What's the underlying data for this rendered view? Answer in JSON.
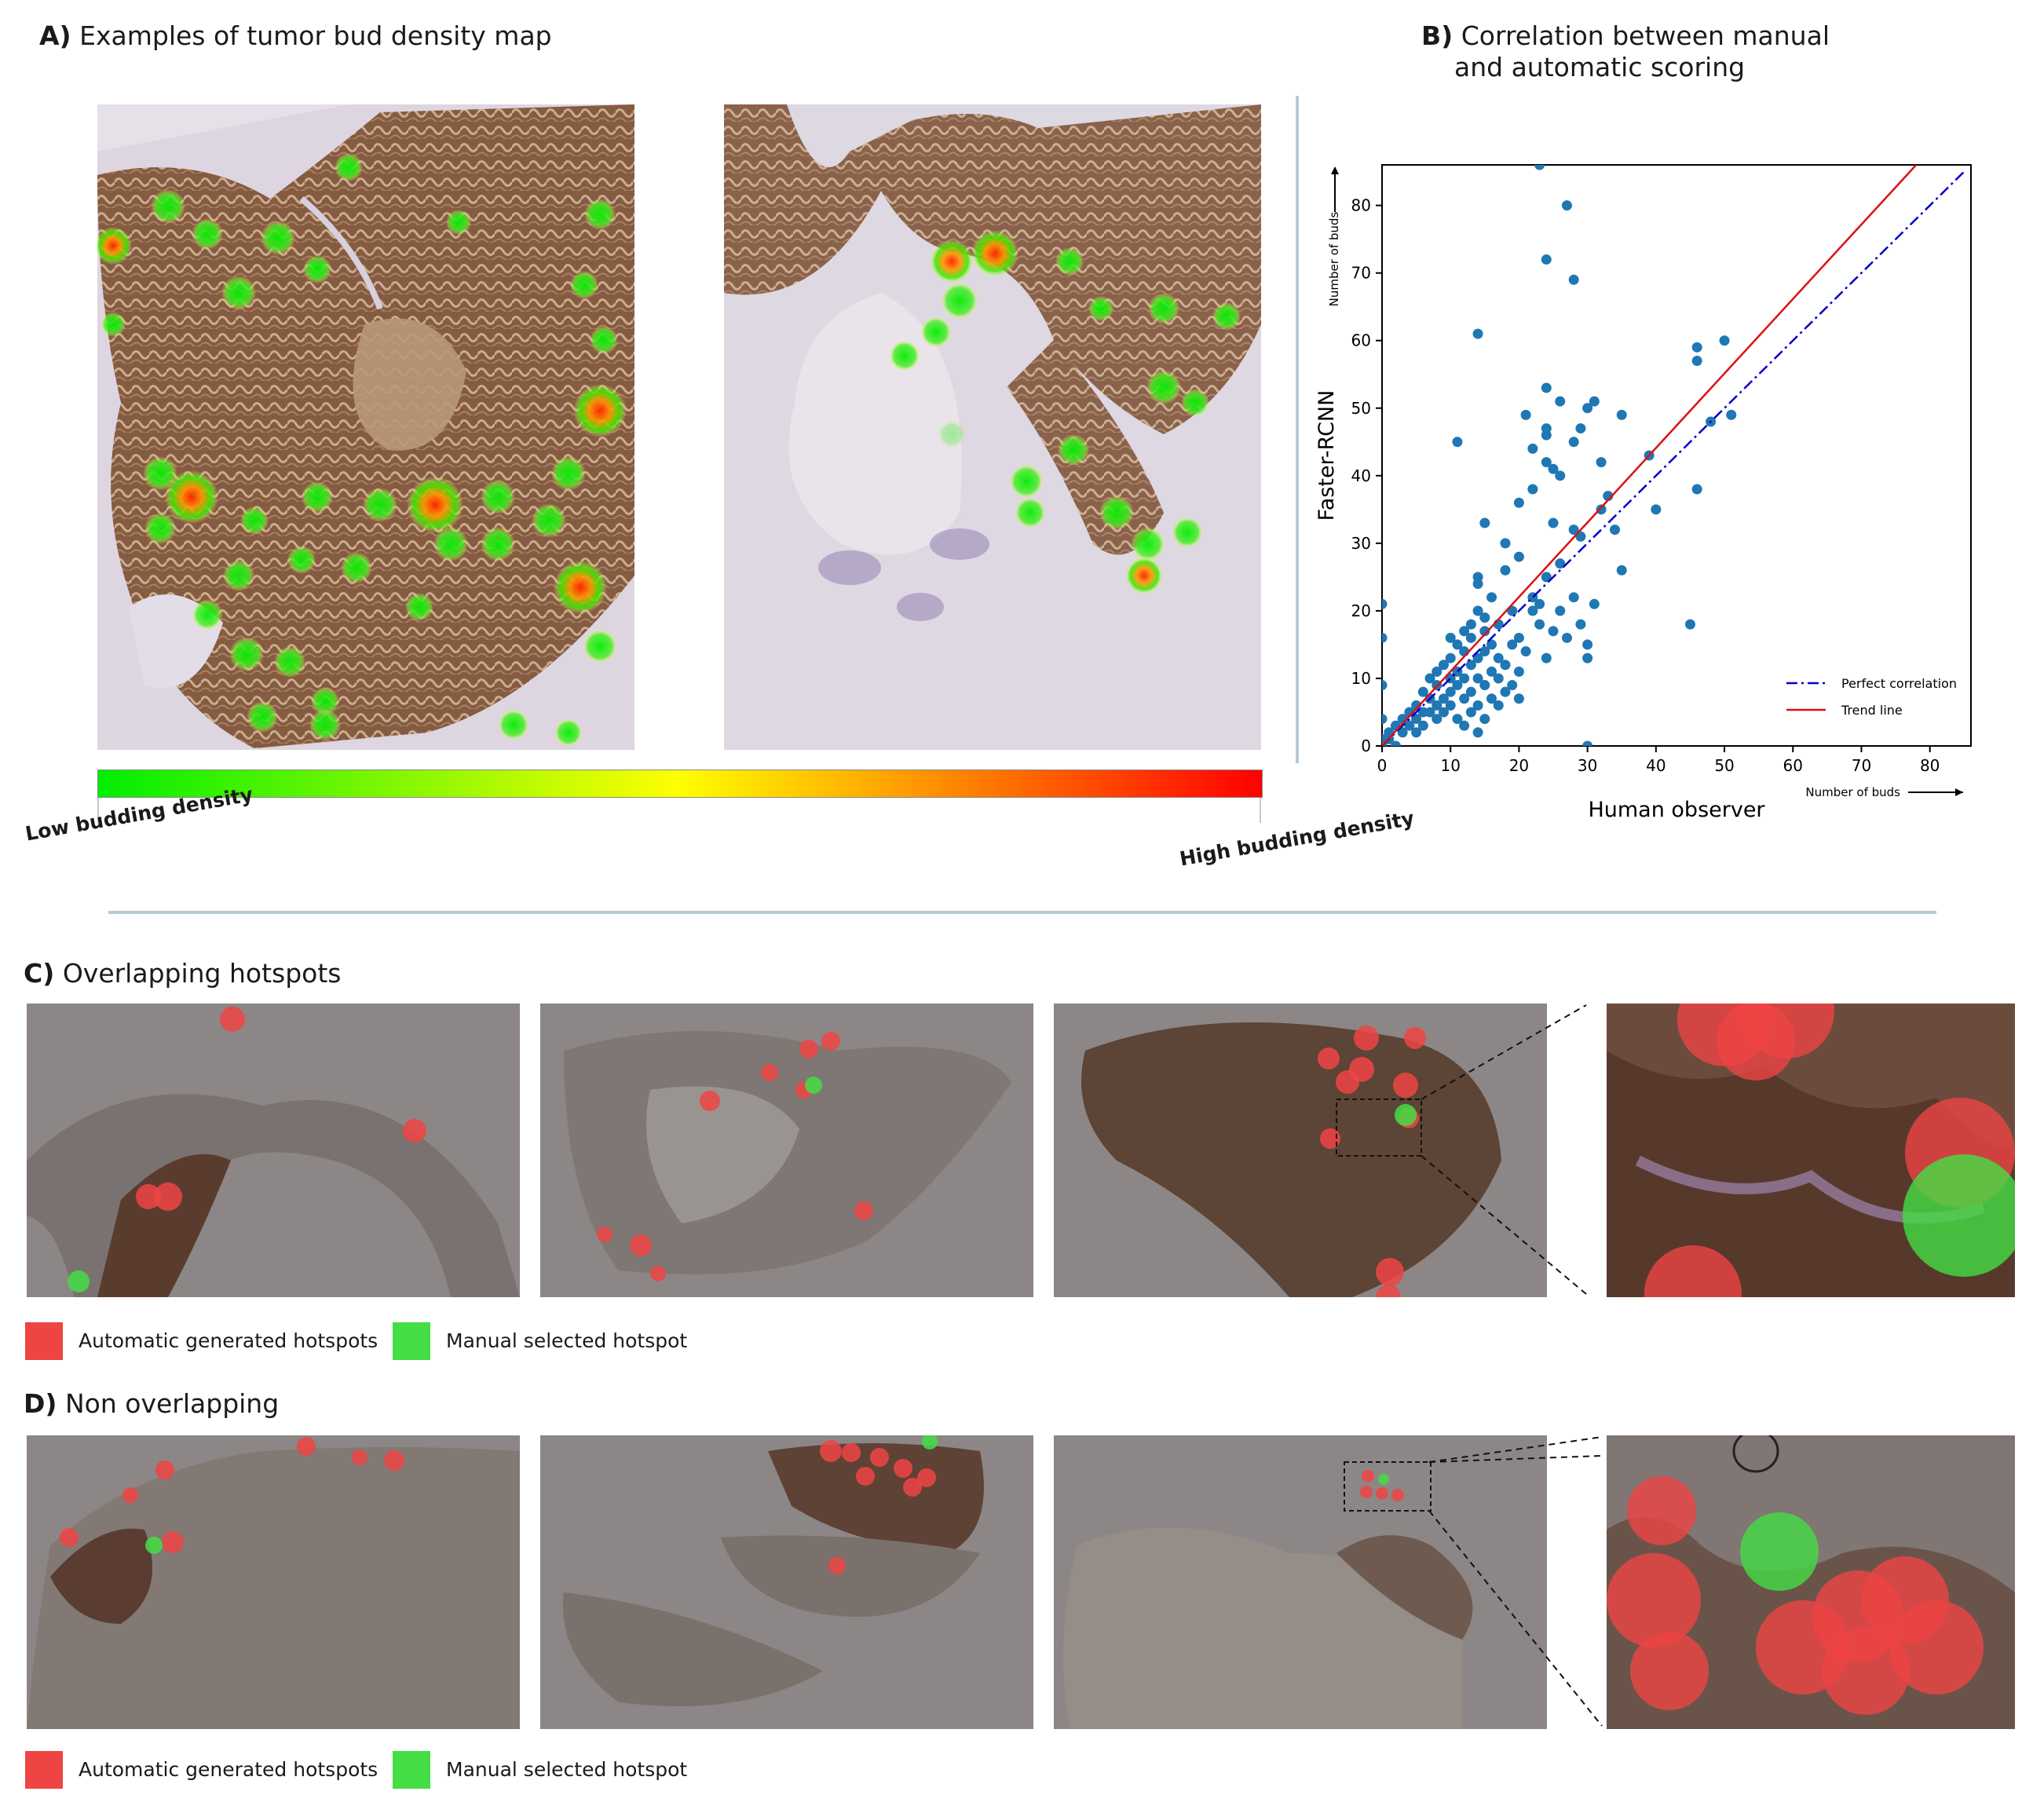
{
  "panel_a": {
    "letter": "A)",
    "title": "Examples of tumor bud density map",
    "colorbar_low_label": "Low budding density",
    "colorbar_high_label": "High budding density",
    "colorbar_colors": [
      "#00ee00",
      "#ffff00",
      "#ff0000"
    ]
  },
  "panel_b": {
    "letter": "B)",
    "title_line1": "Correlation between manual",
    "title_line2": "and automatic scoring"
  },
  "panel_c": {
    "letter": "C)",
    "title": "Overlapping hotspots",
    "legend_auto": "Automatic generated hotspots",
    "legend_manual": "Manual selected hotspot"
  },
  "panel_d": {
    "letter": "D)",
    "title": "Non overlapping",
    "legend_auto": "Automatic generated hotspots",
    "legend_manual": "Manual selected hotspot"
  },
  "colors": {
    "auto_hotspot": "#ee4444",
    "manual_hotspot": "#44dd44",
    "tissue_brown": "#7a4a2e",
    "separator": "#b9c9d6"
  },
  "chart_data": {
    "type": "scatter",
    "xlabel": "Human observer",
    "ylabel": "Faster-RCNN",
    "x_axis_note": "Number of buds",
    "y_axis_note": "Number of buds",
    "xlim": [
      0,
      86
    ],
    "ylim": [
      0,
      86
    ],
    "xticks": [
      0,
      10,
      20,
      30,
      40,
      50,
      60,
      70,
      80
    ],
    "yticks": [
      0,
      10,
      20,
      30,
      40,
      50,
      60,
      70,
      80
    ],
    "grid": false,
    "legend_position": "bottom-right",
    "series": [
      {
        "name": "",
        "kind": "points",
        "color": "#1f77b4",
        "points": [
          [
            0,
            0
          ],
          [
            0,
            1
          ],
          [
            0,
            4
          ],
          [
            0,
            9
          ],
          [
            0,
            16
          ],
          [
            0,
            21
          ],
          [
            1,
            1
          ],
          [
            1,
            2
          ],
          [
            2,
            0
          ],
          [
            2,
            3
          ],
          [
            3,
            2
          ],
          [
            3,
            4
          ],
          [
            4,
            3
          ],
          [
            4,
            5
          ],
          [
            5,
            2
          ],
          [
            5,
            4
          ],
          [
            5,
            6
          ],
          [
            6,
            3
          ],
          [
            6,
            5
          ],
          [
            6,
            8
          ],
          [
            7,
            5
          ],
          [
            7,
            7
          ],
          [
            7,
            10
          ],
          [
            8,
            4
          ],
          [
            8,
            6
          ],
          [
            8,
            9
          ],
          [
            8,
            11
          ],
          [
            9,
            5
          ],
          [
            9,
            7
          ],
          [
            9,
            12
          ],
          [
            10,
            6
          ],
          [
            10,
            8
          ],
          [
            10,
            10
          ],
          [
            10,
            13
          ],
          [
            10,
            16
          ],
          [
            11,
            4
          ],
          [
            11,
            9
          ],
          [
            11,
            11
          ],
          [
            11,
            15
          ],
          [
            11,
            45
          ],
          [
            12,
            3
          ],
          [
            12,
            7
          ],
          [
            12,
            10
          ],
          [
            12,
            14
          ],
          [
            12,
            17
          ],
          [
            13,
            5
          ],
          [
            13,
            8
          ],
          [
            13,
            12
          ],
          [
            13,
            16
          ],
          [
            13,
            18
          ],
          [
            14,
            2
          ],
          [
            14,
            6
          ],
          [
            14,
            10
          ],
          [
            14,
            13
          ],
          [
            14,
            20
          ],
          [
            14,
            24
          ],
          [
            14,
            25
          ],
          [
            14,
            61
          ],
          [
            15,
            4
          ],
          [
            15,
            9
          ],
          [
            15,
            14
          ],
          [
            15,
            17
          ],
          [
            15,
            19
          ],
          [
            15,
            33
          ],
          [
            16,
            7
          ],
          [
            16,
            11
          ],
          [
            16,
            15
          ],
          [
            16,
            22
          ],
          [
            17,
            6
          ],
          [
            17,
            10
          ],
          [
            17,
            13
          ],
          [
            17,
            18
          ],
          [
            18,
            8
          ],
          [
            18,
            12
          ],
          [
            18,
            26
          ],
          [
            18,
            30
          ],
          [
            19,
            9
          ],
          [
            19,
            15
          ],
          [
            19,
            20
          ],
          [
            20,
            7
          ],
          [
            20,
            11
          ],
          [
            20,
            16
          ],
          [
            20,
            28
          ],
          [
            20,
            36
          ],
          [
            21,
            14
          ],
          [
            21,
            49
          ],
          [
            22,
            20
          ],
          [
            22,
            22
          ],
          [
            22,
            38
          ],
          [
            22,
            44
          ],
          [
            23,
            18
          ],
          [
            23,
            21
          ],
          [
            23,
            86
          ],
          [
            24,
            13
          ],
          [
            24,
            25
          ],
          [
            24,
            42
          ],
          [
            24,
            46
          ],
          [
            24,
            47
          ],
          [
            24,
            53
          ],
          [
            24,
            72
          ],
          [
            25,
            17
          ],
          [
            25,
            33
          ],
          [
            25,
            41
          ],
          [
            26,
            20
          ],
          [
            26,
            27
          ],
          [
            26,
            40
          ],
          [
            26,
            51
          ],
          [
            27,
            16
          ],
          [
            27,
            80
          ],
          [
            28,
            22
          ],
          [
            28,
            32
          ],
          [
            28,
            45
          ],
          [
            28,
            69
          ],
          [
            29,
            18
          ],
          [
            29,
            31
          ],
          [
            29,
            47
          ],
          [
            30,
            15
          ],
          [
            30,
            13
          ],
          [
            30,
            0
          ],
          [
            30,
            50
          ],
          [
            31,
            21
          ],
          [
            31,
            51
          ],
          [
            32,
            35
          ],
          [
            32,
            42
          ],
          [
            33,
            37
          ],
          [
            34,
            32
          ],
          [
            35,
            26
          ],
          [
            35,
            49
          ],
          [
            39,
            43
          ],
          [
            40,
            35
          ],
          [
            45,
            18
          ],
          [
            46,
            38
          ],
          [
            46,
            57
          ],
          [
            46,
            59
          ],
          [
            48,
            48
          ],
          [
            50,
            60
          ],
          [
            51,
            49
          ]
        ]
      },
      {
        "name": "Perfect correlation",
        "kind": "line",
        "style": "dash-dot",
        "color": "#0000cc",
        "points": [
          [
            0,
            0
          ],
          [
            85,
            85
          ]
        ]
      },
      {
        "name": "Trend line",
        "kind": "line",
        "style": "solid",
        "color": "#dd1111",
        "points": [
          [
            0,
            0
          ],
          [
            78,
            86
          ]
        ]
      }
    ]
  }
}
